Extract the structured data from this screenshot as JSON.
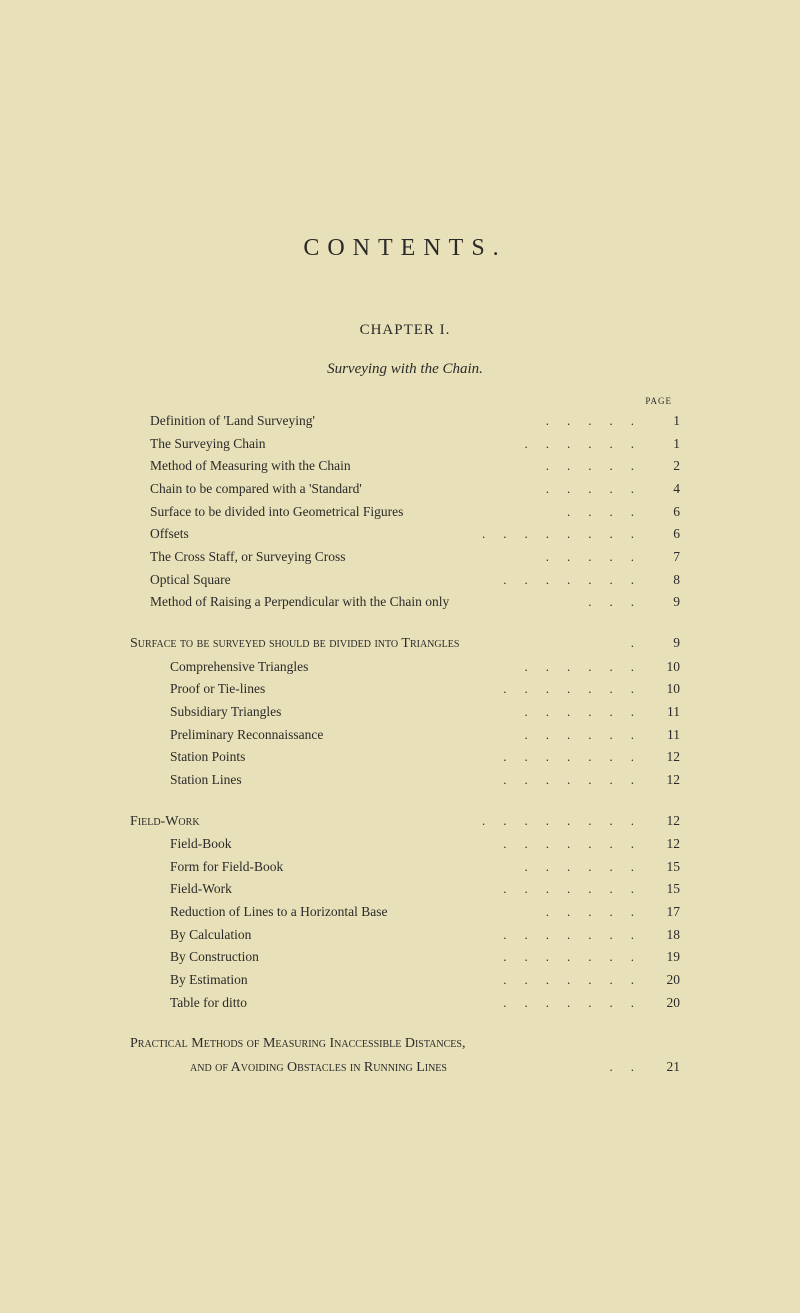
{
  "title": "CONTENTS.",
  "chapter": "CHAPTER I.",
  "subtitle": "Surveying with the Chain.",
  "pageHeader": "PAGE",
  "colors": {
    "background": "#e8e0b8",
    "text": "#2a2a2a"
  },
  "typography": {
    "title_fontsize": 24,
    "title_letterspacing": 8,
    "body_fontsize": 13.5,
    "line_height": 1.68
  },
  "entries1": [
    {
      "label": "Definition of 'Land Surveying'",
      "page": "1"
    },
    {
      "label": "The Surveying Chain",
      "page": "1"
    },
    {
      "label": "Method of Measuring with the Chain",
      "page": "2"
    },
    {
      "label": "Chain to be compared with a 'Standard'",
      "page": "4"
    },
    {
      "label": "Surface to be divided into Geometrical Figures",
      "page": "6"
    },
    {
      "label": "Offsets",
      "page": "6"
    },
    {
      "label": "The Cross Staff, or Surveying Cross",
      "page": "7"
    },
    {
      "label": "Optical Square",
      "page": "8"
    },
    {
      "label": "Method of Raising a Perpendicular with the Chain only",
      "page": "9"
    }
  ],
  "section2": {
    "label": "Surface to be surveyed should be divided into Triangles",
    "page": "9"
  },
  "entries2": [
    {
      "label": "Comprehensive Triangles",
      "page": "10"
    },
    {
      "label": "Proof or Tie-lines",
      "page": "10"
    },
    {
      "label": "Subsidiary Triangles",
      "page": "11"
    },
    {
      "label": "Preliminary Reconnaissance",
      "page": "11"
    },
    {
      "label": "Station Points",
      "page": "12"
    },
    {
      "label": "Station Lines",
      "page": "12"
    }
  ],
  "section3": {
    "label": "Field-Work",
    "page": "12"
  },
  "entries3": [
    {
      "label": "Field-Book",
      "page": "12"
    },
    {
      "label": "Form for Field-Book",
      "page": "15"
    },
    {
      "label": "Field-Work",
      "page": "15"
    },
    {
      "label": "Reduction of Lines to a Horizontal Base",
      "page": "17"
    },
    {
      "label": "By Calculation",
      "page": "18"
    },
    {
      "label": "By Construction",
      "page": "19"
    },
    {
      "label": "By Estimation",
      "page": "20"
    },
    {
      "label": "Table for ditto",
      "page": "20"
    }
  ],
  "closing": {
    "line1": "Practical Methods of Measuring Inaccessible Distances,",
    "line2": "and of Avoiding Obstacles in Running Lines",
    "page": "21"
  }
}
